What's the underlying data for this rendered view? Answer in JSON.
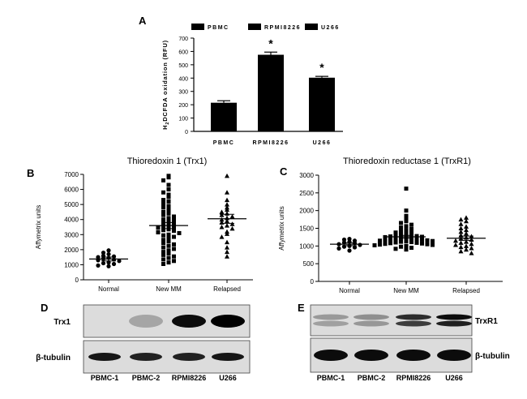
{
  "panels": {
    "A": "A",
    "B": "B",
    "C": "C",
    "D": "D",
    "E": "E"
  },
  "chart_data": [
    {
      "type": "bar",
      "panel": "A",
      "title": "",
      "ylabel": "H2DCFDA oxidation (RFU)",
      "ylabel_main": "H",
      "ylabel_sub": "2",
      "ylabel_rest": "DCFDA oxidation (RFU)",
      "categories": [
        "PBMC",
        "RPMI8226",
        "U266"
      ],
      "values": [
        215,
        575,
        403
      ],
      "errors": [
        15,
        20,
        10
      ],
      "significance": [
        "",
        "*",
        "*"
      ],
      "legend": [
        "PBMC",
        "RPMI8226",
        "U266"
      ],
      "legend_position": "top",
      "ylim": [
        0,
        700
      ],
      "yticks": [
        "0",
        "100",
        "200",
        "300",
        "400",
        "500",
        "600",
        "700"
      ],
      "colors": [
        "#000000",
        "#000000",
        "#000000"
      ]
    },
    {
      "type": "scatter",
      "panel": "B",
      "title": "Thioredoxin 1 (Trx1)",
      "ylabel": "Affymetrix units",
      "categories": [
        "Normal",
        "New MM",
        "Relapsed"
      ],
      "markers": [
        "circle",
        "square",
        "triangle"
      ],
      "ylim": [
        0,
        7000
      ],
      "yticks": [
        "0",
        "1000",
        "2000",
        "3000",
        "4000",
        "5000",
        "6000",
        "7000"
      ],
      "means": [
        1380,
        3600,
        4050
      ],
      "sems": [
        130,
        200,
        300
      ],
      "series": [
        {
          "values": [
            1950,
            1800,
            1700,
            1600,
            1550,
            1500,
            1450,
            1400,
            1350,
            1300,
            1250,
            1150,
            1100,
            1050,
            950,
            900
          ]
        },
        {
          "values": [
            6900,
            6800,
            6600,
            6300,
            6000,
            5800,
            5650,
            5500,
            5300,
            5200,
            5050,
            4900,
            4800,
            4650,
            4500,
            4400,
            4300,
            4200,
            4100,
            4000,
            3950,
            3850,
            3800,
            3700,
            3600,
            3550,
            3500,
            3450,
            3350,
            3300,
            3250,
            3150,
            3100,
            3000,
            2950,
            2850,
            2750,
            2650,
            2550,
            2450,
            2350,
            2250,
            2150,
            2050,
            1950,
            1850,
            1750,
            1650,
            1550,
            1450,
            1350,
            1250,
            1150,
            1050
          ]
        },
        {
          "values": [
            6900,
            5800,
            5300,
            5000,
            4800,
            4650,
            4500,
            4400,
            4300,
            4200,
            4100,
            4000,
            3900,
            3800,
            3700,
            3600,
            3500,
            3400,
            3200,
            3050,
            2850,
            2500,
            2150,
            1850,
            1550
          ]
        }
      ]
    },
    {
      "type": "scatter",
      "panel": "C",
      "title": "Thioredoxin reductase 1 (TrxR1)",
      "ylabel": "Affymetrix units",
      "categories": [
        "Normal",
        "New MM",
        "Relapsed"
      ],
      "markers": [
        "circle",
        "square",
        "triangle"
      ],
      "ylim": [
        0,
        3000
      ],
      "yticks": [
        "0",
        "500",
        "1000",
        "1500",
        "2000",
        "2500",
        "3000"
      ],
      "means": [
        1050,
        1260,
        1220
      ],
      "sems": [
        40,
        40,
        60
      ],
      "series": [
        {
          "values": [
            1200,
            1180,
            1150,
            1120,
            1100,
            1080,
            1050,
            1030,
            1000,
            980,
            960,
            930,
            870
          ]
        },
        {
          "values": [
            2620,
            2000,
            1850,
            1750,
            1700,
            1650,
            1600,
            1560,
            1520,
            1480,
            1450,
            1420,
            1400,
            1380,
            1360,
            1340,
            1320,
            1300,
            1280,
            1270,
            1260,
            1250,
            1240,
            1230,
            1220,
            1210,
            1200,
            1190,
            1180,
            1170,
            1160,
            1150,
            1140,
            1130,
            1120,
            1110,
            1100,
            1090,
            1080,
            1070,
            1060,
            1050,
            1040,
            1030,
            1020,
            1000,
            980,
            950,
            920,
            900
          ]
        },
        {
          "values": [
            1800,
            1750,
            1700,
            1620,
            1550,
            1500,
            1450,
            1400,
            1350,
            1300,
            1270,
            1240,
            1210,
            1180,
            1150,
            1120,
            1090,
            1060,
            1030,
            1000,
            970,
            940,
            900,
            850,
            800
          ]
        }
      ]
    }
  ],
  "blots": {
    "D": {
      "row_labels": [
        "Trx1",
        "β-tubulin"
      ],
      "lanes": [
        "PBMC-1",
        "PBMC-2",
        "RPMI8226",
        "U266"
      ],
      "band_intensity": [
        [
          0.0,
          0.25,
          0.95,
          1.0
        ],
        [
          0.9,
          0.85,
          0.85,
          0.9
        ]
      ]
    },
    "E": {
      "row_labels": [
        "TrxR1",
        "β-tubulin"
      ],
      "lanes": [
        "PBMC-1",
        "PBMC-2",
        "RPMI8226",
        "U266"
      ],
      "band_intensity": [
        [
          0.3,
          0.35,
          0.8,
          0.95
        ],
        [
          0.95,
          0.95,
          0.95,
          0.95
        ]
      ]
    }
  }
}
